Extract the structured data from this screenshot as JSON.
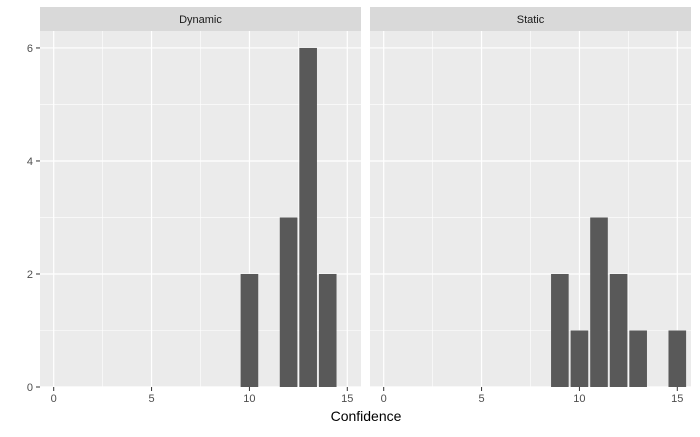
{
  "chart_data": {
    "type": "bar",
    "xlabel": "Confidence",
    "ylabel": "",
    "xlim": [
      -0.7,
      15.7
    ],
    "ylim": [
      0,
      6.3
    ],
    "x_ticks": [
      0,
      5,
      10,
      15
    ],
    "y_ticks": [
      0,
      2,
      4,
      6
    ],
    "grid": true,
    "facets": [
      {
        "name": "Dynamic",
        "bars": [
          {
            "x": 10,
            "value": 2
          },
          {
            "x": 12,
            "value": 3
          },
          {
            "x": 13,
            "value": 6
          },
          {
            "x": 14,
            "value": 2
          }
        ]
      },
      {
        "name": "Static",
        "bars": [
          {
            "x": 9,
            "value": 2
          },
          {
            "x": 10,
            "value": 1
          },
          {
            "x": 11,
            "value": 3
          },
          {
            "x": 12,
            "value": 2
          },
          {
            "x": 13,
            "value": 1
          },
          {
            "x": 15,
            "value": 1
          }
        ]
      }
    ],
    "colors": {
      "bar": "#595959",
      "panel_background": "#ebebeb",
      "strip_background": "#d9d9d9",
      "grid": "#ffffff",
      "text": "#4d4d4d",
      "axis_title": "#000000"
    }
  }
}
